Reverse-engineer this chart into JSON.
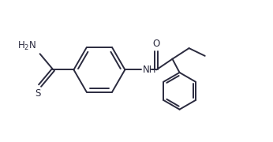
{
  "bg_color": "#ffffff",
  "line_color": "#2a2a3e",
  "line_width": 1.4,
  "font_size": 8.5,
  "fig_width": 3.46,
  "fig_height": 1.8,
  "dpi": 100,
  "xlim": [
    0,
    10.5
  ],
  "ylim": [
    0,
    5.5
  ]
}
